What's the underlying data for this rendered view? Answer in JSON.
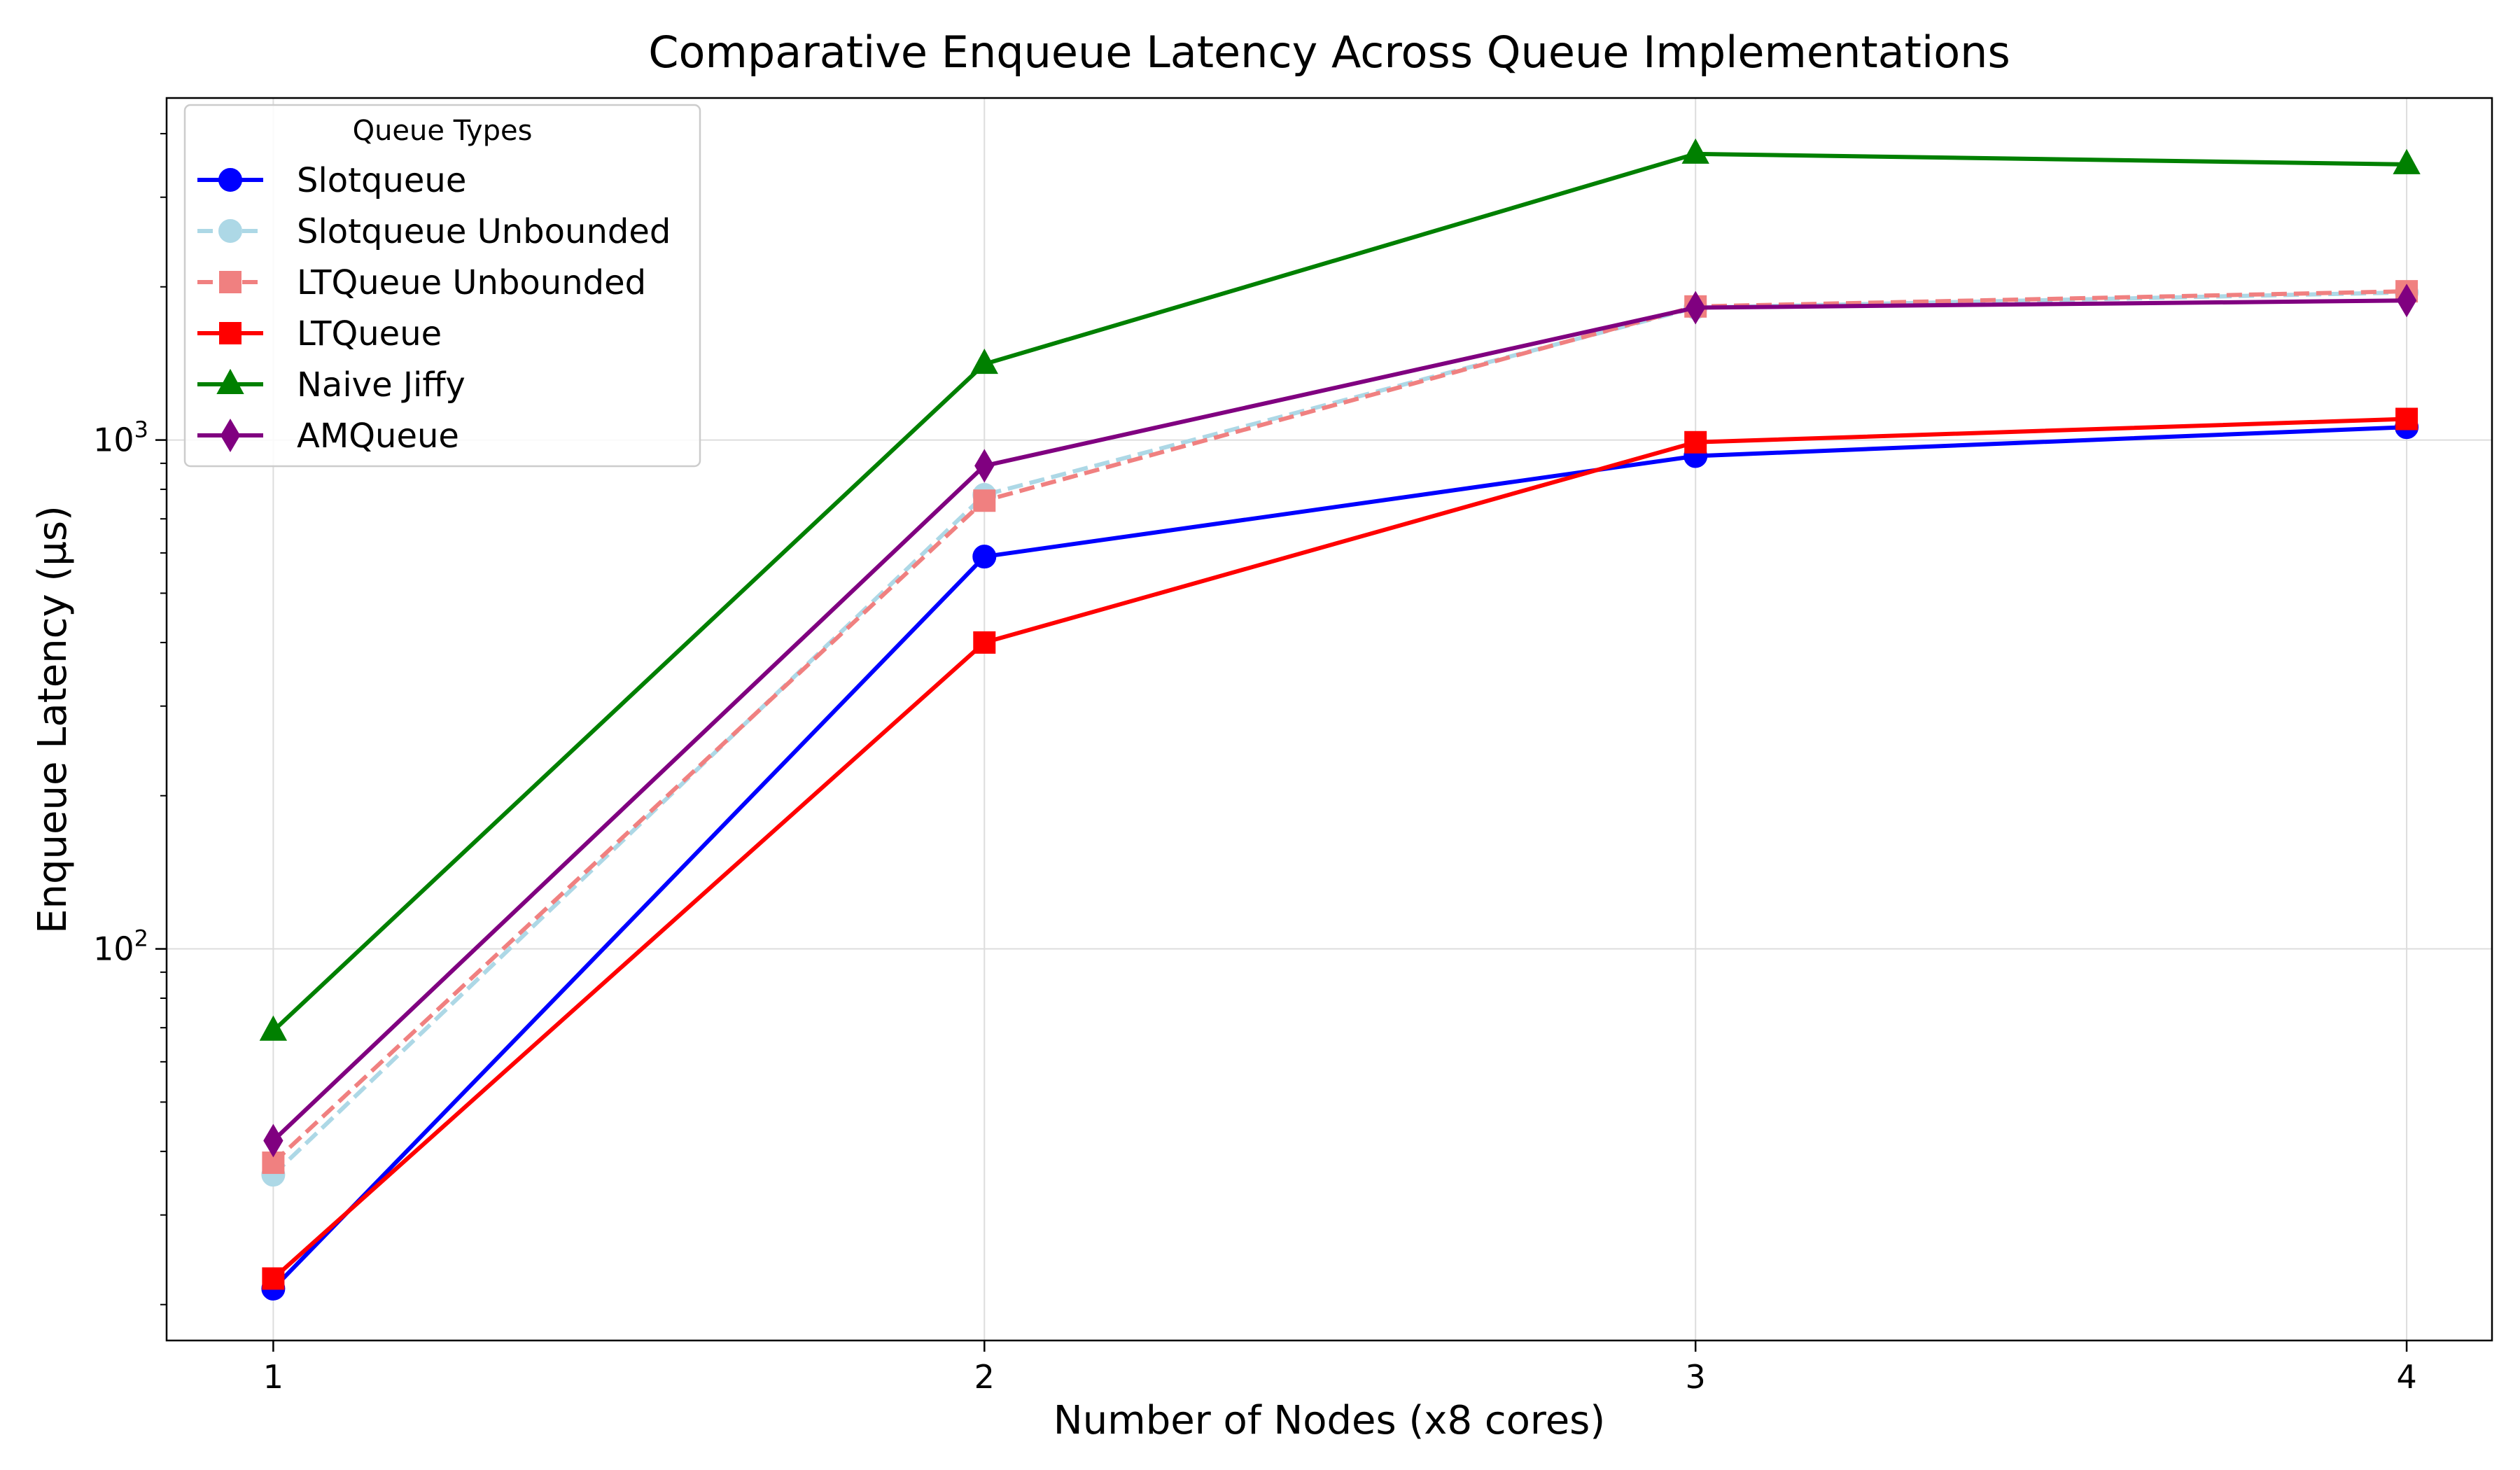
{
  "chart_data": {
    "type": "line",
    "title": "Comparative Enqueue Latency Across Queue Implementations",
    "xlabel": "Number of Nodes (x8 cores)",
    "ylabel": "Enqueue Latency (µs)",
    "x": [
      1,
      2,
      3,
      4
    ],
    "x_tick_labels": [
      "1",
      "2",
      "3",
      "4"
    ],
    "xlim": [
      0.85,
      4.12
    ],
    "y_scale": "log",
    "ylim": [
      17,
      4700
    ],
    "y_ticks": [
      {
        "value": 100,
        "base": "10",
        "exp": "2"
      },
      {
        "value": 1000,
        "base": "10",
        "exp": "3"
      }
    ],
    "grid": true,
    "legend": {
      "title": "Queue Types",
      "position": "top-left"
    },
    "series": [
      {
        "name": "Slotqueue",
        "values": [
          21.5,
          590,
          930,
          1060
        ],
        "color": "#0000ff",
        "dash": false,
        "marker": "circle"
      },
      {
        "name": "Slotqueue Unbounded",
        "values": [
          36,
          780,
          1820,
          1950
        ],
        "color": "#add8e6",
        "dash": true,
        "marker": "circle"
      },
      {
        "name": "LTQueue Unbounded",
        "values": [
          38,
          760,
          1830,
          1960
        ],
        "color": "#f08080",
        "dash": true,
        "marker": "square"
      },
      {
        "name": "LTQueue",
        "values": [
          22.5,
          400,
          990,
          1100
        ],
        "color": "#ff0000",
        "dash": false,
        "marker": "square"
      },
      {
        "name": "Naive Jiffy",
        "values": [
          69,
          1410,
          3650,
          3480
        ],
        "color": "#008000",
        "dash": false,
        "marker": "triangle"
      },
      {
        "name": "AMQueue",
        "values": [
          42,
          890,
          1820,
          1880
        ],
        "color": "#800080",
        "dash": false,
        "marker": "diamond"
      }
    ]
  }
}
